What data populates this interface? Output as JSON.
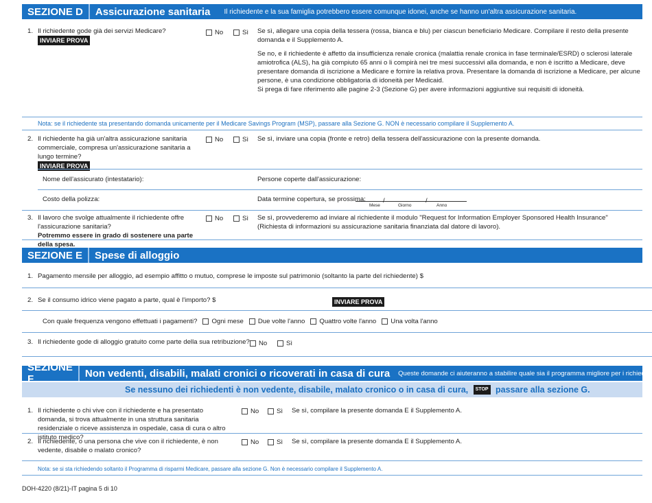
{
  "section_d": {
    "label": "SEZIONE D",
    "title": "Assicurazione sanitaria",
    "subtitle": "Il richiedente e la sua famiglia potrebbero essere comunque idonei, anche se hanno un'altra assicurazione sanitaria.",
    "q1": {
      "num": "1.",
      "text": "Il richiedente gode già dei servizi Medicare?",
      "badge": "INVIARE PROVA",
      "no": "No",
      "yes": "Sì",
      "note_yes": "Se sì, allegare una copia della tessera (rossa, bianca e blu) per ciascun beneficiario Medicare. Compilare il resto della presente domanda e il Supplemento A.",
      "note_no": "Se no, e il richiedente è affetto da insufficienza renale cronica (malattia renale cronica in fase terminale/ESRD) o sclerosi laterale amiotrofica (ALS), ha già compiuto 65 anni o li compirà nei tre mesi successivi alla domanda, e non è iscritto a Medicare, deve presentare domanda di iscrizione a Medicare e fornire la relativa prova. Presentare la domanda di iscrizione a Medicare, per alcune persone, è una condizione obbligatoria di idoneità per Medicaid.",
      "note_ref": "Si prega di fare riferimento alle pagine 2-3 (Sezione G) per avere informazioni aggiuntive sui requisiti di idoneità."
    },
    "nota": "Nota: se il richiedente sta presentando domanda unicamente per il Medicare Savings Program (MSP), passare alla Sezione G. NON è necessario compilare il Supplemento A.",
    "q2": {
      "num": "2.",
      "text": "Il richiedente ha già un'altra assicurazione sanitaria commerciale, compresa un'assicurazione sanitaria a lungo termine?",
      "badge": "INVIARE PROVA",
      "no": "No",
      "yes": "Sì",
      "note": "Se sì, inviare una copia (fronte e retro) della tessera dell'assicurazione con la presente domanda.",
      "policyholder": "Nome dell'assicurato (intestatario):",
      "covered": "Persone coperte dall'assicurazione:",
      "cost": "Costo della polizza:",
      "end_date": "Data termine copertura, se prossima:",
      "month": "Mese",
      "day": "Giorno",
      "year": "Anno"
    },
    "q3": {
      "num": "3.",
      "text": "Il lavoro che svolge attualmente il richiedente offre l'assicurazione sanitaria?",
      "bold": "Potremmo essere in grado di sostenere una parte della spesa.",
      "no": "No",
      "yes": "Sì",
      "note": "Se sì, provvederemo ad inviare al richiedente il modulo \"Request for Information Employer Sponsored Health Insurance\" (Richiesta di informazioni su assicurazione sanitaria finanziata dal datore di lavoro)."
    }
  },
  "section_e": {
    "label": "SEZIONE E",
    "title": "Spese di alloggio",
    "q1": {
      "num": "1.",
      "text": "Pagamento mensile per alloggio, ad esempio affitto o mutuo, comprese le imposte sul patrimonio (soltanto la parte del richiedente) $"
    },
    "q2": {
      "num": "2.",
      "text": "Se il consumo idrico viene pagato a parte, qual è l'importo? $",
      "badge": "INVIARE PROVA",
      "freq": "Con quale frequenza vengono effettuati i pagamenti?",
      "options": [
        "Ogni mese",
        "Due volte l'anno",
        "Quattro volte l'anno",
        "Una volta l'anno"
      ]
    },
    "q3": {
      "num": "3.",
      "text": "Il richiedente gode di alloggio gratuito come parte della sua retribuzione?",
      "no": "No",
      "yes": "Sì"
    }
  },
  "section_f": {
    "label": "SEZIONE F",
    "title": "Non vedenti, disabili, malati cronici o ricoverati in casa di cura",
    "subtitle": "Queste domande ci aiuteranno a stabilire quale sia il programma migliore per i richiedenti.",
    "band_pre": "Se nessuno dei richiedenti è non vedente, disabile, malato cronico o in casa di cura,",
    "stop": "STOP",
    "band_post": "passare alla sezione G.",
    "q1": {
      "num": "1.",
      "text": "Il richiedente o chi vive con il richiedente e ha presentato domanda, si trova attualmente in una struttura sanitaria residenziale o riceve assistenza in ospedale, casa di cura o altro istituto medico?",
      "no": "No",
      "yes": "Sì",
      "note": "Se sì, compilare la presente domanda E il Supplemento A."
    },
    "q2": {
      "num": "2.",
      "text": "Il richiedente, o una persona che vive con il richiedente, è non vedente, disabile o malato cronico?",
      "no": "No",
      "yes": "Sì",
      "note": "Se sì, compilare la presente domanda E il Supplemento A."
    },
    "nota": "Nota: se si sta richiedendo soltanto il Programma di risparmi Medicare, passare alla sezione G. Non è necessario compilare il Supplemento A."
  },
  "footer": "DOH-4220 (8/21)-IT pagina 5 di 10"
}
